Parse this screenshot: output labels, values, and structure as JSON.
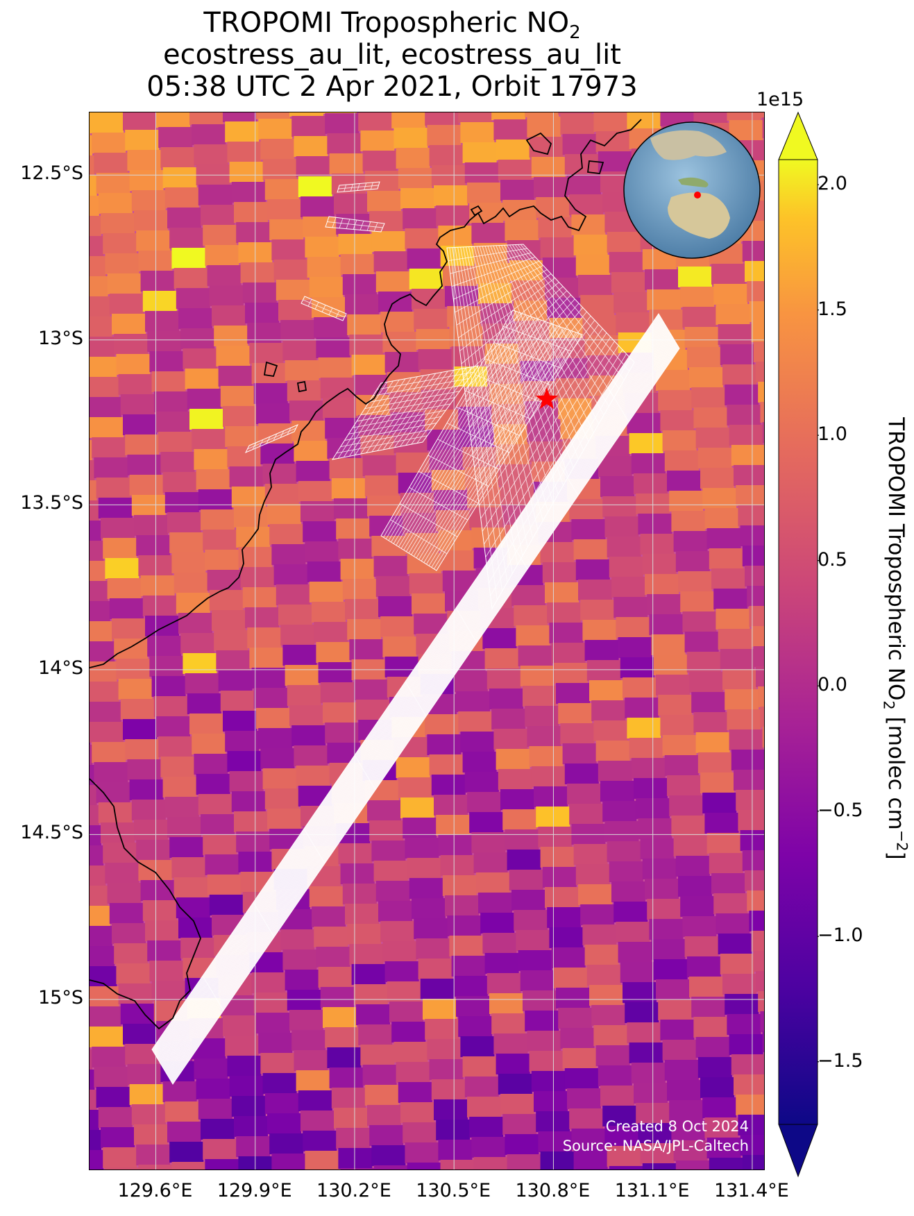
{
  "title": {
    "line1": "TROPOMI Tropospheric NO",
    "line1_sub": "2",
    "line2": "ecostress_au_lit, ecostress_au_lit",
    "line3": "05:38 UTC 2 Apr 2021, Orbit 17973"
  },
  "map": {
    "lat_ticks": [
      "12.5°S",
      "13°S",
      "13.5°S",
      "14°S",
      "14.5°S",
      "15°S"
    ],
    "lat_values": [
      -12.5,
      -13.0,
      -13.5,
      -14.0,
      -14.5,
      -15.0
    ],
    "lon_ticks": [
      "129.6°E",
      "129.9°E",
      "130.2°E",
      "130.5°E",
      "130.8°E",
      "131.1°E",
      "131.4°E"
    ],
    "lon_values": [
      129.6,
      129.9,
      130.2,
      130.5,
      130.8,
      131.1,
      131.4
    ],
    "lon_range": [
      129.4,
      131.44
    ],
    "lat_range": [
      -12.31,
      -15.52
    ],
    "site_marker": {
      "lon": 130.78,
      "lat": -13.18,
      "color": "#ff0000"
    },
    "credit_line1": "Created 8 Oct 2024",
    "credit_line2": "Source: NASA/JPL-Caltech"
  },
  "colorbar": {
    "colormap": "plasma",
    "ticks": [
      "2.0",
      "1.5",
      "1.0",
      "0.5",
      "0.0",
      "−0.5",
      "−1.0",
      "−1.5"
    ],
    "tick_values": [
      2.0,
      1.5,
      1.0,
      0.5,
      0.0,
      -0.5,
      -1.0,
      -1.5
    ],
    "range": [
      -1.75,
      2.1
    ],
    "exponent": "1e15",
    "label_pre": "TROPOMI Tropospheric NO",
    "label_sub": "2",
    "label_mid": " [molec cm",
    "label_sup": "−2",
    "label_post": "]"
  }
}
